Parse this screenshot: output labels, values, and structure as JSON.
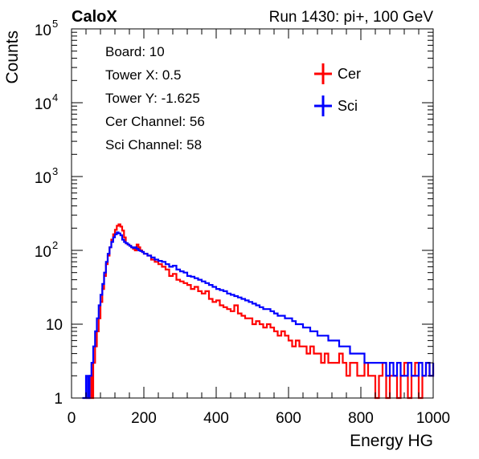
{
  "chart_data": {
    "type": "line",
    "title_left": "CaloX",
    "title_right": "Run 1430: pi+, 100 GeV",
    "xlabel": "Energy HG",
    "ylabel": "Counts",
    "xlim": [
      0,
      1000
    ],
    "ylim": [
      1,
      100000
    ],
    "y_scale": "log",
    "grid": false,
    "x_ticks": [
      0,
      200,
      400,
      600,
      800,
      1000
    ],
    "y_ticks": [
      {
        "value": 1,
        "label": "1"
      },
      {
        "value": 10,
        "label": "10"
      },
      {
        "value": 100,
        "label": "10",
        "exp": "2"
      },
      {
        "value": 1000,
        "label": "10",
        "exp": "3"
      },
      {
        "value": 10000,
        "label": "10",
        "exp": "4"
      },
      {
        "value": 100000,
        "label": "10",
        "exp": "5"
      }
    ],
    "info_box": [
      "Board: 10",
      "Tower X: 0.5",
      "Tower Y: -1.625",
      "Cer Channel: 56",
      "Sci Channel: 58"
    ],
    "legend_position": "top-right",
    "series": [
      {
        "name": "Cer",
        "color": "#ff0000",
        "x": [
          40,
          50,
          55,
          60,
          65,
          70,
          75,
          80,
          85,
          90,
          95,
          100,
          105,
          110,
          115,
          120,
          125,
          130,
          135,
          140,
          145,
          150,
          155,
          160,
          165,
          170,
          175,
          180,
          185,
          190,
          195,
          200,
          210,
          220,
          230,
          240,
          250,
          260,
          270,
          280,
          290,
          300,
          310,
          320,
          330,
          340,
          350,
          360,
          370,
          380,
          390,
          400,
          410,
          420,
          430,
          440,
          450,
          460,
          470,
          480,
          490,
          500,
          510,
          520,
          530,
          540,
          550,
          560,
          570,
          580,
          590,
          600,
          610,
          620,
          630,
          640,
          650,
          660,
          670,
          680,
          690,
          700,
          710,
          720,
          730,
          740,
          750,
          760,
          770,
          780,
          790,
          800,
          810,
          820,
          830,
          840,
          850,
          860,
          870,
          880,
          890,
          900,
          910,
          920,
          930,
          940,
          950,
          960,
          970,
          980,
          990,
          1000
        ],
        "y": [
          1,
          2,
          1,
          3,
          5,
          8,
          12,
          20,
          30,
          45,
          65,
          85,
          110,
          140,
          165,
          190,
          215,
          225,
          210,
          185,
          150,
          125,
          120,
          115,
          110,
          105,
          100,
          120,
          110,
          100,
          95,
          90,
          85,
          75,
          70,
          65,
          60,
          55,
          45,
          48,
          40,
          38,
          36,
          34,
          30,
          32,
          28,
          26,
          28,
          22,
          20,
          21,
          18,
          17,
          16,
          15,
          18,
          14,
          13,
          12,
          12,
          10,
          11,
          10,
          9,
          10,
          9,
          8,
          7,
          8,
          7,
          6,
          5,
          6,
          5,
          5,
          4,
          5,
          4,
          4,
          3,
          4,
          3,
          3,
          3,
          4,
          3,
          2,
          3,
          3,
          2,
          2,
          3,
          2,
          2,
          1,
          2,
          3,
          1,
          2,
          2,
          1,
          2,
          3,
          1,
          2,
          3,
          1,
          2,
          3,
          2,
          3
        ]
      },
      {
        "name": "Sci",
        "color": "#0000ff",
        "x": [
          30,
          40,
          45,
          50,
          55,
          60,
          65,
          70,
          75,
          80,
          85,
          90,
          95,
          100,
          105,
          110,
          115,
          120,
          125,
          130,
          135,
          140,
          145,
          150,
          155,
          160,
          165,
          170,
          175,
          180,
          185,
          190,
          195,
          200,
          210,
          220,
          230,
          240,
          250,
          260,
          270,
          280,
          290,
          300,
          310,
          320,
          330,
          340,
          350,
          360,
          370,
          380,
          390,
          400,
          410,
          420,
          430,
          440,
          450,
          460,
          470,
          480,
          490,
          500,
          510,
          520,
          530,
          540,
          550,
          560,
          570,
          580,
          590,
          600,
          610,
          620,
          630,
          640,
          650,
          660,
          670,
          680,
          690,
          700,
          710,
          720,
          730,
          740,
          750,
          760,
          770,
          780,
          790,
          800,
          810,
          820,
          830,
          840,
          850,
          860,
          870,
          880,
          890,
          900,
          910,
          920,
          930,
          940,
          950,
          960,
          970,
          980,
          990,
          1000
        ],
        "y": [
          1,
          2,
          1,
          2,
          3,
          5,
          8,
          12,
          18,
          25,
          35,
          50,
          70,
          90,
          110,
          130,
          150,
          165,
          175,
          170,
          160,
          140,
          130,
          125,
          120,
          115,
          110,
          108,
          110,
          105,
          100,
          98,
          95,
          90,
          85,
          80,
          75,
          72,
          70,
          65,
          60,
          62,
          55,
          52,
          50,
          45,
          44,
          42,
          40,
          38,
          36,
          34,
          32,
          30,
          29,
          28,
          26,
          25,
          24,
          23,
          22,
          21,
          20,
          19,
          18,
          17,
          16,
          16,
          15,
          14,
          13,
          13,
          12,
          12,
          11,
          10,
          10,
          9,
          9,
          8,
          8,
          7,
          7,
          7,
          6,
          6,
          6,
          5,
          5,
          5,
          4,
          4,
          4,
          4,
          3,
          3,
          3,
          3,
          3,
          3,
          2,
          3,
          2,
          3,
          2,
          2,
          3,
          2,
          2,
          3,
          2,
          3,
          2,
          3
        ]
      }
    ]
  }
}
